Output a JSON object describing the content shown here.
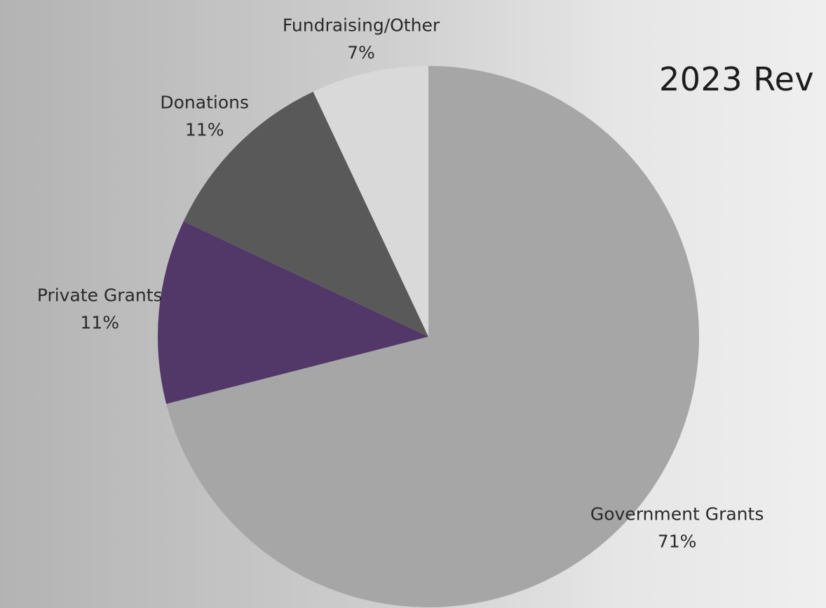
{
  "chart_data": {
    "type": "pie",
    "title": "2023 Rev",
    "categories": [
      "Government Grants",
      "Private Grants",
      "Donations",
      "Fundraising/Other"
    ],
    "values": [
      71,
      11,
      11,
      7
    ],
    "value_labels": [
      "71%",
      "11%",
      "11%",
      "7%"
    ],
    "colors": [
      "#a6a6a6",
      "#523868",
      "#595959",
      "#d9d9d9"
    ],
    "start": "12 o'clock",
    "direction": "clockwise",
    "legend": "none"
  }
}
